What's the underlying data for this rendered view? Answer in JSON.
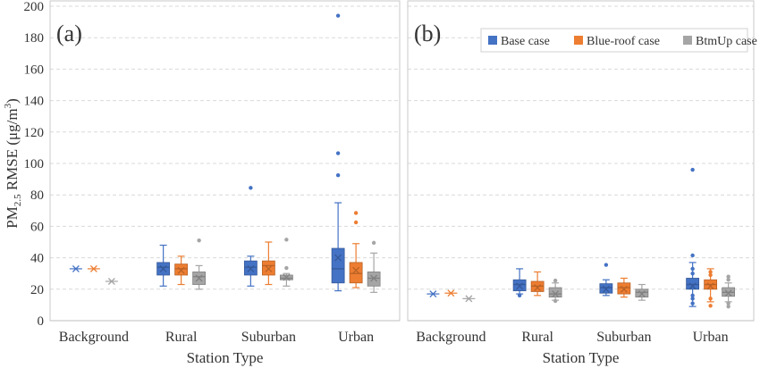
{
  "y_axis_label": {
    "prefix": "PM",
    "subscript": "2.5",
    "rest": " RMSE (μg/m",
    "sup": "3",
    "close": ")"
  },
  "colors": {
    "base": "#4472C4",
    "blue_roof": "#ED7D31",
    "btmup": "#A5A5A5"
  },
  "legend": {
    "placement": "top-right of panel (b)",
    "entries": [
      {
        "key": "base",
        "label": "Base case"
      },
      {
        "key": "blue_roof",
        "label": "Blue-roof case"
      },
      {
        "key": "btmup",
        "label": "BtmUp case"
      }
    ]
  },
  "chart_data": [
    {
      "type": "box",
      "panel_label": "(a)",
      "xlabel": "Station Type",
      "ylim": [
        0,
        200
      ],
      "yticks": [
        0,
        20,
        40,
        60,
        80,
        100,
        120,
        140,
        160,
        180,
        200
      ],
      "grid": true,
      "categories": [
        "Background",
        "Rural",
        "Suburban",
        "Urban"
      ],
      "series": [
        {
          "name": "Base case",
          "key": "base",
          "boxes": [
            {
              "min": 33,
              "q1": 33,
              "median": 33,
              "q3": 33,
              "max": 33,
              "mean": 33,
              "outliers": []
            },
            {
              "min": 22,
              "q1": 29,
              "median": 34,
              "q3": 37,
              "max": 48,
              "mean": 33,
              "outliers": []
            },
            {
              "min": 22,
              "q1": 29,
              "median": 34,
              "q3": 38,
              "max": 41,
              "mean": 33,
              "outliers": [
                84.5
              ]
            },
            {
              "min": 19,
              "q1": 24,
              "median": 33,
              "q3": 46,
              "max": 75,
              "mean": 40,
              "outliers": [
                92.5,
                106.5,
                194
              ]
            }
          ]
        },
        {
          "name": "Blue-roof case",
          "key": "blue_roof",
          "boxes": [
            {
              "min": 33,
              "q1": 33,
              "median": 33,
              "q3": 33,
              "max": 33,
              "mean": 33,
              "outliers": []
            },
            {
              "min": 23,
              "q1": 29,
              "median": 33,
              "q3": 36,
              "max": 41,
              "mean": 32,
              "outliers": []
            },
            {
              "min": 23,
              "q1": 29,
              "median": 35,
              "q3": 38,
              "max": 50,
              "mean": 33,
              "outliers": []
            },
            {
              "min": 21,
              "q1": 24,
              "median": 30,
              "q3": 37,
              "max": 49,
              "mean": 32,
              "outliers": [
                62.5,
                68.5
              ]
            }
          ]
        },
        {
          "name": "BtmUp case",
          "key": "btmup",
          "boxes": [
            {
              "min": 25,
              "q1": 25,
              "median": 25,
              "q3": 25,
              "max": 25,
              "mean": 25,
              "outliers": []
            },
            {
              "min": 20,
              "q1": 23,
              "median": 28,
              "q3": 31,
              "max": 35,
              "mean": 27,
              "outliers": [
                51
              ]
            },
            {
              "min": 22,
              "q1": 26,
              "median": 27,
              "q3": 29,
              "max": 30,
              "mean": 27.5,
              "outliers": [
                33.5,
                51.5
              ]
            },
            {
              "min": 18,
              "q1": 22,
              "median": 27,
              "q3": 31,
              "max": 43,
              "mean": 27,
              "outliers": [
                49.5
              ]
            }
          ]
        }
      ]
    },
    {
      "type": "box",
      "panel_label": "(b)",
      "xlabel": "Station Type",
      "ylim": [
        0,
        200
      ],
      "grid": true,
      "categories": [
        "Background",
        "Rural",
        "Suburban",
        "Urban"
      ],
      "series": [
        {
          "name": "Base case",
          "key": "base",
          "boxes": [
            {
              "min": 17,
              "q1": 17,
              "median": 17,
              "q3": 17,
              "max": 17,
              "mean": 17,
              "outliers": []
            },
            {
              "min": 17,
              "q1": 19,
              "median": 23,
              "q3": 26,
              "max": 33,
              "mean": 22,
              "outliers": [
                16
              ]
            },
            {
              "min": 16,
              "q1": 17.5,
              "median": 21,
              "q3": 23.5,
              "max": 26,
              "mean": 20,
              "outliers": [
                35.5
              ]
            },
            {
              "min": 9,
              "q1": 20,
              "median": 23,
              "q3": 27,
              "max": 37,
              "mean": 22,
              "outliers": [
                11,
                14,
                16,
                30,
                33,
                41.5,
                96
              ]
            }
          ]
        },
        {
          "name": "Blue-roof case",
          "key": "blue_roof",
          "boxes": [
            {
              "min": 17.5,
              "q1": 17.5,
              "median": 17.5,
              "q3": 17.5,
              "max": 17.5,
              "mean": 17.5,
              "outliers": []
            },
            {
              "min": 16,
              "q1": 18.5,
              "median": 22,
              "q3": 25,
              "max": 31,
              "mean": 21,
              "outliers": []
            },
            {
              "min": 15,
              "q1": 17,
              "median": 21,
              "q3": 24,
              "max": 27,
              "mean": 20,
              "outliers": []
            },
            {
              "min": 12,
              "q1": 20,
              "median": 23,
              "q3": 26,
              "max": 33,
              "mean": 22,
              "outliers": [
                9.5,
                14,
                29,
                31
              ]
            }
          ]
        },
        {
          "name": "BtmUp case",
          "key": "btmup",
          "boxes": [
            {
              "min": 14,
              "q1": 14,
              "median": 14,
              "q3": 14,
              "max": 14,
              "mean": 14,
              "outliers": []
            },
            {
              "min": 13,
              "q1": 15,
              "median": 17,
              "q3": 21,
              "max": 24,
              "mean": 17,
              "outliers": [
                12.5,
                25.5
              ]
            },
            {
              "min": 13,
              "q1": 15,
              "median": 18,
              "q3": 20,
              "max": 23,
              "mean": 17,
              "outliers": []
            },
            {
              "min": 12,
              "q1": 15.5,
              "median": 18,
              "q3": 21,
              "max": 24,
              "mean": 17.5,
              "outliers": [
                9,
                11,
                26,
                28
              ]
            }
          ]
        }
      ]
    }
  ]
}
